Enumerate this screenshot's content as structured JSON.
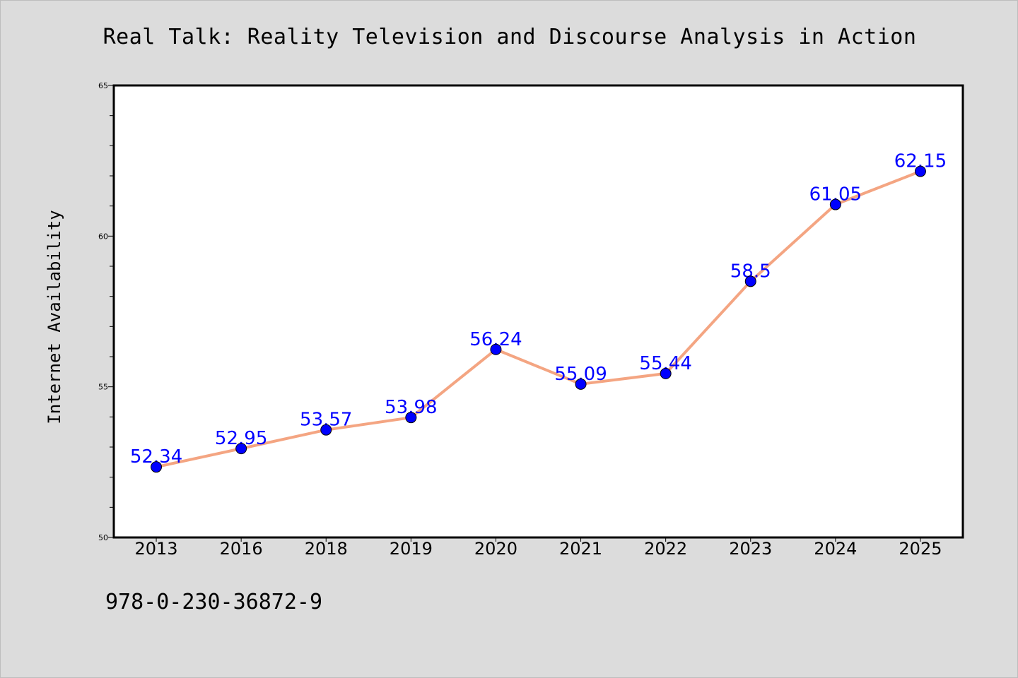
{
  "title": "Real Talk: Reality Television and Discourse Analysis in Action",
  "isbn": "978-0-230-36872-9",
  "colors": {
    "background": "#dcdcdc",
    "plot_background": "#ffffff",
    "line": "#f4a582",
    "marker": "#0000ff",
    "data_label": "#0000ff"
  },
  "chart_data": {
    "type": "line",
    "title": "Real Talk: Reality Television and Discourse Analysis in Action",
    "xlabel": "",
    "ylabel": "Internet Availability",
    "categories": [
      "2013",
      "2016",
      "2018",
      "2019",
      "2020",
      "2021",
      "2022",
      "2023",
      "2024",
      "2025"
    ],
    "series": [
      {
        "values": [
          52.34,
          52.95,
          53.57,
          53.98,
          56.24,
          55.09,
          55.44,
          58.5,
          61.05,
          62.15
        ],
        "labels": [
          "52.34",
          "52.95",
          "53.57",
          "53.98",
          "56.24",
          "55.09",
          "55.44",
          "58.5",
          "61.05",
          "62.15"
        ]
      }
    ],
    "ylim": [
      50,
      65
    ],
    "yticks": [
      "50",
      "55",
      "60",
      "65"
    ],
    "grid": false,
    "legend": "none",
    "markers": true,
    "data_labels": true
  }
}
